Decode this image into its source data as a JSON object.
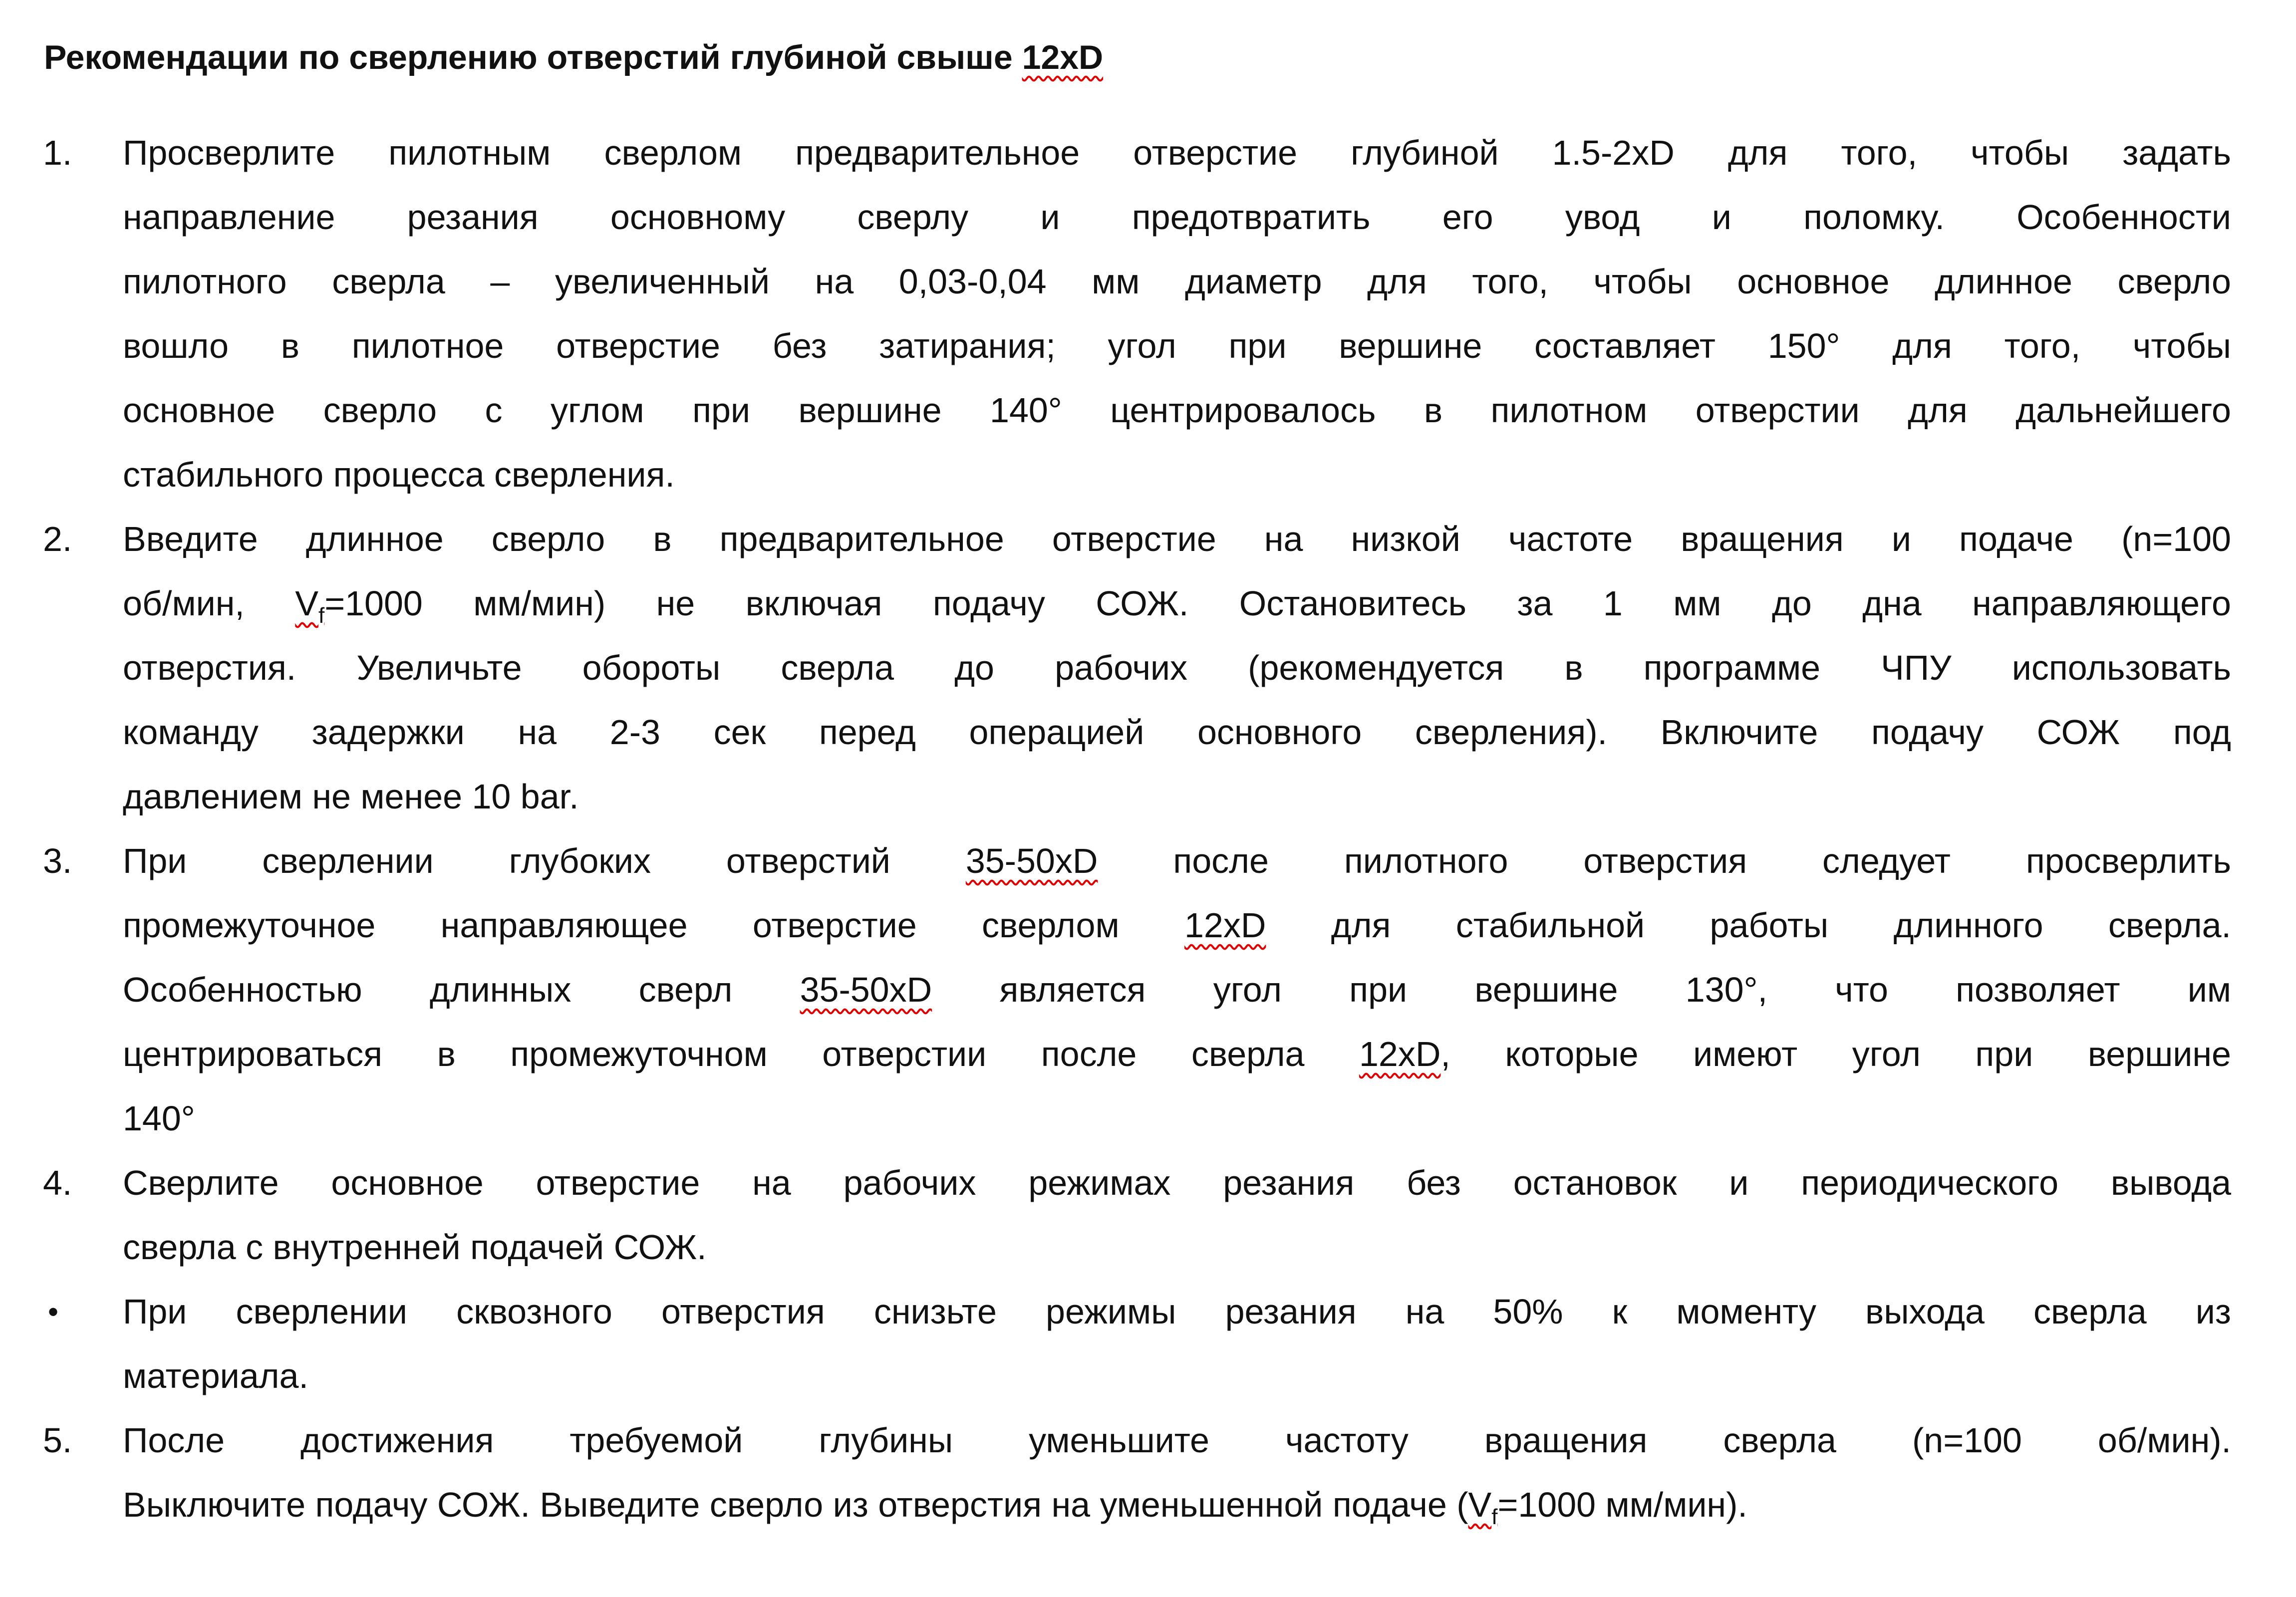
{
  "title": {
    "text": "Рекомендации по сверлению отверстий глубиной свыше ",
    "spell": "12xD"
  },
  "items": [
    {
      "marker": "1.",
      "lines": [
        [
          "Просверлите пилотным сверлом предварительное отверстие глубиной 1.5-2xD для того, чтобы задать"
        ],
        [
          "направление резания основному сверлу и предотвратить его увод и поломку. Особенности"
        ],
        [
          "пилотного сверла – увеличенный на 0,03-0,04 мм диаметр для того, чтобы основное длинное сверло"
        ],
        [
          "вошло в пилотное отверстие без затирания; угол при вершине составляет 150° для того, чтобы"
        ],
        [
          "основное сверло с углом при вершине 140° центрировалось в пилотном отверстии для дальнейшего"
        ],
        [
          "стабильного процесса сверления."
        ]
      ]
    },
    {
      "marker": "2.",
      "lines": [
        [
          "Введите длинное сверло в предварительное отверстие на низкой частоте вращения и подаче (n=100"
        ],
        [
          "об/мин, ",
          {
            "spell": "V",
            "sub": "f"
          },
          "=1000 мм/мин) не включая подачу СОЖ. Остановитесь за 1 мм до дна направляющего"
        ],
        [
          "отверстия. Увеличьте обороты сверла до рабочих (рекомендуется в программе ЧПУ использовать"
        ],
        [
          "команду задержки на 2-3 сек перед операцией основного сверления). Включите подачу СОЖ под"
        ],
        [
          "давлением не менее 10 bar."
        ]
      ]
    },
    {
      "marker": "3.",
      "lines": [
        [
          "При сверлении глубоких отверстий ",
          {
            "spell": "35-50xD"
          },
          " после пилотного отверстия следует просверлить"
        ],
        [
          "промежуточное направляющее отверстие сверлом ",
          {
            "spell": "12xD"
          },
          " для стабильной работы длинного сверла."
        ],
        [
          "Особенностью длинных сверл ",
          {
            "spell": "35-50xD"
          },
          " является угол при вершине 130°, что позволяет им"
        ],
        [
          "центрироваться в промежуточном отверстии после сверла ",
          {
            "spell": "12xD"
          },
          ", которые имеют угол при вершине"
        ],
        [
          "140°"
        ]
      ]
    },
    {
      "marker": "4.",
      "lines": [
        [
          "Сверлите основное отверстие на рабочих режимах резания без остановок и периодического вывода"
        ],
        [
          "сверла с внутренней подачей СОЖ."
        ]
      ]
    },
    {
      "marker": "•",
      "bullet": true,
      "lines": [
        [
          "При сверлении сквозного отверстия снизьте режимы резания на 50% к моменту выхода сверла из"
        ],
        [
          "материала."
        ]
      ]
    },
    {
      "marker": "5.",
      "lines": [
        [
          "После достижения требуемой глубины уменьшите частоту вращения сверла (n=100 об/мин)."
        ],
        [
          "Выключите подачу СОЖ. Выведите сверло из отверстия на уменьшенной подаче (",
          {
            "spell": "V",
            "sub": "f"
          },
          "=1000 мм/мин)."
        ]
      ]
    }
  ],
  "colors": {
    "text": "#111111",
    "spellcheck_underline": "#e00000"
  }
}
